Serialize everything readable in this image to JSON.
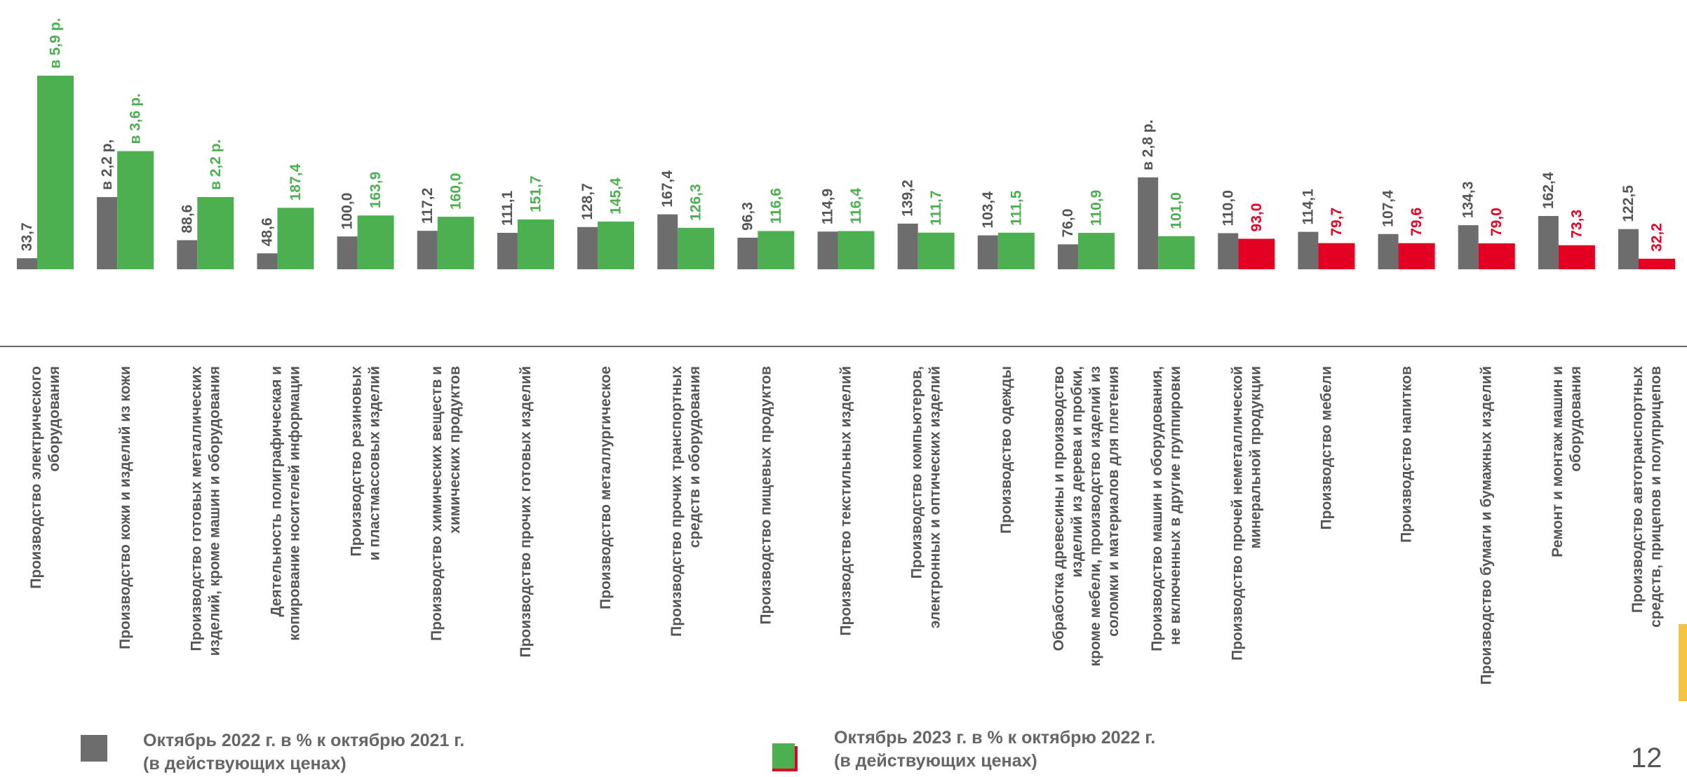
{
  "chart_data": {
    "type": "bar",
    "categories": [
      [
        "Производство электрического",
        "оборудования"
      ],
      [
        "Производство кожи и изделий из кожи"
      ],
      [
        "Производство готовых металлических",
        "изделий, кроме машин и оборудования"
      ],
      [
        "Деятельность полиграфическая и",
        "копирование носителей информации"
      ],
      [
        "Производство резиновых",
        "и пластмассовых изделий"
      ],
      [
        "Производство химических  веществ и",
        "химических продуктов"
      ],
      [
        "Производство прочих  готовых изделий"
      ],
      [
        "Производство  металлургическое"
      ],
      [
        "Производство прочих транспортных",
        "средств и оборудования"
      ],
      [
        "Производство пищевых продуктов"
      ],
      [
        "Производство текстильных изделий"
      ],
      [
        "Производство компьютеров,",
        "электронных и оптических изделий"
      ],
      [
        "Производство одежды"
      ],
      [
        "Обработка древесины и производство",
        "изделий из дерева и пробки,",
        "кроме мебели, производство изделий из",
        "соломки и материалов для плетения"
      ],
      [
        "Производство машин и оборудования,",
        "не включенных в другие группировки"
      ],
      [
        "Производство прочей неметаллической",
        "минеральной продукции"
      ],
      [
        "Производство мебели"
      ],
      [
        "Производство напитков"
      ],
      [
        "Производство бумаги и бумажных изделий"
      ],
      [
        "Ремонт и монтаж машин и",
        "оборудования"
      ],
      [
        "Производство автотранспортных",
        "средств, прицепов и полуприцепов"
      ]
    ],
    "series": [
      {
        "name": "Октябрь 2022 г. в % к  октябрю 2021 г.\n(в действующих ценах)",
        "color": "#6d6d6d",
        "values": [
          33.7,
          220,
          88.6,
          48.6,
          100.0,
          117.2,
          111.1,
          128.7,
          167.4,
          96.3,
          114.9,
          139.2,
          103.4,
          76.0,
          280,
          110.0,
          114.1,
          107.4,
          134.3,
          162.4,
          122.5
        ],
        "value_labels": [
          "33,7",
          "в 2,2 р,",
          "88,6",
          "48,6",
          "100,0",
          "117,2",
          "111,1",
          "128,7",
          "167,4",
          "96,3",
          "114,9",
          "139,2",
          "103,4",
          "76,0",
          "в 2,8 р.",
          "110,0",
          "114,1",
          "107,4",
          "134,3",
          "162,4",
          "122,5"
        ]
      },
      {
        "name": "Октябрь 2023 г. в % к октябрю 2022 г.\n(в действующих ценах)",
        "color": "#4caf50",
        "colors": [
          "#4caf50",
          "#4caf50",
          "#4caf50",
          "#4caf50",
          "#4caf50",
          "#4caf50",
          "#4caf50",
          "#4caf50",
          "#4caf50",
          "#4caf50",
          "#4caf50",
          "#4caf50",
          "#4caf50",
          "#4caf50",
          "#4caf50",
          "#e30022",
          "#e30022",
          "#e30022",
          "#e30022",
          "#e30022",
          "#e30022"
        ],
        "values": [
          590,
          360,
          220,
          187.4,
          163.9,
          160.0,
          151.7,
          145.4,
          126.3,
          116.6,
          116.4,
          111.7,
          111.5,
          110.9,
          101.0,
          93.0,
          79.7,
          79.6,
          79.0,
          73.3,
          32.2
        ],
        "value_labels": [
          "в 5,9 р.",
          "в 3,6 р.",
          "в 2,2 р.",
          "187,4",
          "163,9",
          "160,0",
          "151,7",
          "145,4",
          "126,3",
          "116,6",
          "116,4",
          "111,7",
          "111,5",
          "110,9",
          "101,0",
          "93,0",
          "79,7",
          "79,6",
          "79,0",
          "73,3",
          "32,2"
        ]
      }
    ],
    "page_number": "12"
  }
}
